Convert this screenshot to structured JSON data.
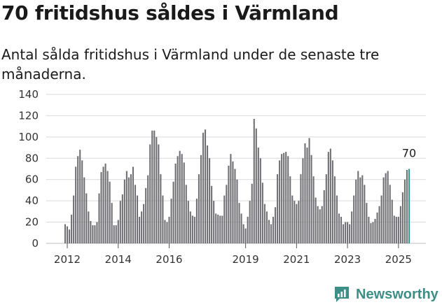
{
  "header": {
    "title": "70 fritidshus såldes i Värmland",
    "subtitle": "Antal sålda fritidshus i Värmland under de senaste tre månaderna."
  },
  "brand": {
    "name": "Newsworthy",
    "icon": "newsworthy-logo-icon",
    "color": "#3c8e86"
  },
  "colors": {
    "bar": "#6e6e73",
    "highlight": "#2a9a94",
    "grid": "#d9d9d9"
  },
  "chart_data": {
    "type": "bar",
    "title": "70 fritidshus såldes i Värmland",
    "subtitle": "Antal sålda fritidshus i Värmland under de senaste tre månaderna.",
    "xlabel": "",
    "ylabel": "",
    "ylim": [
      0,
      140
    ],
    "yticks": [
      0,
      20,
      40,
      60,
      80,
      100,
      120,
      140
    ],
    "xticks": [
      "2012",
      "2014",
      "2016",
      "2019",
      "2021",
      "2023",
      "2025"
    ],
    "grid": true,
    "start_period": "2011-12",
    "last_value_label": "70",
    "values": [
      18,
      16,
      13,
      27,
      45,
      72,
      82,
      88,
      78,
      62,
      47,
      30,
      21,
      17,
      17,
      20,
      47,
      67,
      72,
      75,
      68,
      58,
      38,
      17,
      17,
      22,
      40,
      46,
      60,
      68,
      62,
      65,
      72,
      55,
      45,
      25,
      30,
      37,
      52,
      64,
      93,
      106,
      106,
      100,
      93,
      65,
      45,
      22,
      20,
      25,
      42,
      58,
      75,
      82,
      87,
      84,
      76,
      55,
      40,
      30,
      26,
      25,
      42,
      65,
      83,
      104,
      107,
      92,
      80,
      54,
      40,
      28,
      27,
      26,
      26,
      45,
      55,
      73,
      84,
      77,
      70,
      60,
      38,
      28,
      18,
      14,
      25,
      40,
      56,
      117,
      108,
      90,
      80,
      57,
      37,
      30,
      22,
      18,
      25,
      34,
      65,
      78,
      84,
      85,
      86,
      82,
      63,
      45,
      40,
      37,
      40,
      65,
      80,
      94,
      90,
      99,
      83,
      63,
      43,
      35,
      32,
      35,
      50,
      65,
      86,
      89,
      78,
      63,
      45,
      28,
      25,
      18,
      20,
      20,
      18,
      30,
      45,
      60,
      68,
      62,
      64,
      55,
      38,
      25,
      19,
      20,
      23,
      29,
      35,
      45,
      62,
      66,
      68,
      55,
      41,
      26,
      25,
      25,
      35,
      48,
      60,
      69,
      70
    ]
  }
}
